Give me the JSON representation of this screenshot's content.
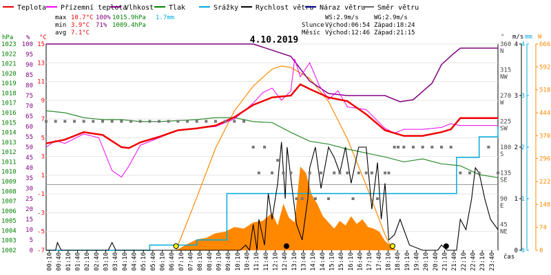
{
  "chart_data": {
    "type": "line",
    "title": "4.10.2019",
    "x_axis": {
      "label": "čas",
      "ticks": [
        "00:10",
        "00:40",
        "01:10",
        "01:40",
        "02:10",
        "02:40",
        "03:10",
        "03:40",
        "04:10",
        "04:40",
        "05:10",
        "05:40",
        "06:10",
        "06:40",
        "07:10",
        "07:40",
        "08:10",
        "08:40",
        "09:10",
        "09:40",
        "10:10",
        "10:40",
        "11:10",
        "11:40",
        "12:10",
        "12:40",
        "13:10",
        "13:40",
        "14:10",
        "14:40",
        "15:10",
        "15:40",
        "16:10",
        "16:40",
        "17:10",
        "17:40",
        "18:10",
        "18:40",
        "19:10",
        "19:40",
        "20:10",
        "20:40",
        "21:10",
        "21:40",
        "22:10",
        "22:40",
        "23:10",
        "23:40"
      ]
    },
    "axes": {
      "hpa": {
        "label": "hPa",
        "color": "#008000",
        "min": 1002,
        "max": 1023,
        "ticks": [
          "1002",
          "1003",
          "1004",
          "1005",
          "1006",
          "1007",
          "1008",
          "1009",
          "1010",
          "1011",
          "1012",
          "1013",
          "1014",
          "1015",
          "1016",
          "1017",
          "1018",
          "1019",
          "1020",
          "1021",
          "1022",
          "1023"
        ]
      },
      "percent": {
        "label": "%",
        "color": "#800080",
        "min": 0,
        "max": 100,
        "ticks": [
          "0",
          "5",
          "10",
          "15",
          "20",
          "25",
          "30",
          "35",
          "40",
          "45",
          "50",
          "55",
          "60",
          "65",
          "70",
          "75",
          "80",
          "85",
          "90",
          "95",
          "100"
        ]
      },
      "temp": {
        "label": "°C",
        "color": "#ff0000",
        "min": -7,
        "max": 15,
        "ticks": [
          "-7",
          "-5",
          "-3",
          "-1",
          "1",
          "3",
          "5",
          "7",
          "9",
          "11",
          "13",
          "15"
        ]
      },
      "direction": {
        "label": "°",
        "color": "#555555",
        "min": 0,
        "max": 360,
        "ticks": [
          {
            "v": 360,
            "l": "360",
            "d": "N"
          },
          {
            "v": 315,
            "l": "315",
            "d": "NW"
          },
          {
            "v": 270,
            "l": "270",
            "d": "W"
          },
          {
            "v": 225,
            "l": "225",
            "d": "SW"
          },
          {
            "v": 180,
            "l": "180",
            "d": "S"
          },
          {
            "v": 135,
            "l": "135",
            "d": "SE"
          },
          {
            "v": 90,
            "l": "90",
            "d": "E"
          },
          {
            "v": 45,
            "l": "45",
            "d": "NE"
          }
        ]
      },
      "wind": {
        "label": "m/s",
        "color": "#000000",
        "min": 0,
        "max": 4,
        "ticks": [
          "0",
          "1",
          "2",
          "3",
          "4"
        ]
      },
      "rain": {
        "label": "mm",
        "color": "#00aadd",
        "min": 0,
        "max": 4,
        "ticks": [
          "0",
          "1",
          "2",
          "3",
          "4"
        ]
      },
      "solar": {
        "label": "W",
        "color": "#ff8800",
        "min": 0,
        "max": 666,
        "ticks": [
          "0",
          "74",
          "148",
          "222",
          "296",
          "370",
          "444",
          "518",
          "592",
          "666"
        ]
      }
    },
    "legend": [
      {
        "name": "Teplota",
        "color": "#ee0000"
      },
      {
        "name": "Přízemní teplota",
        "color": "#ff00ff"
      },
      {
        "name": "Vlhkost",
        "color": "#800080"
      },
      {
        "name": "Tlak",
        "color": "#008000"
      },
      {
        "name": "Srážky",
        "color": "#00aadd"
      },
      {
        "name": "Rychlost větru",
        "color": "#000000"
      },
      {
        "name": "Náraz větru",
        "color": "#00008b"
      },
      {
        "name": "Směr větru",
        "color": "#666666"
      }
    ],
    "stats": {
      "rows": [
        {
          "label": "max",
          "temp": "10.7°C",
          "hum": "100%",
          "press": "1015.9hPa",
          "rain": "1.7mm"
        },
        {
          "label": "min",
          "temp": "3.9°C",
          "hum": "71%",
          "press": "1009.4hPa",
          "rain": ""
        },
        {
          "label": "avg",
          "temp": "7.1°C",
          "hum": "",
          "press": "",
          "rain": ""
        }
      ],
      "ws": "WS:2.9m/s",
      "wg": "WG:2.9m/s",
      "sun_label": "Slunce",
      "sun_rise": "Východ:06:54",
      "sun_set": "Západ:18:24",
      "moon_label": "Měsíc",
      "moon_rise": "Východ:12:46",
      "moon_set": "Západ:21:15"
    },
    "series": {
      "temperature": {
        "unit": "°C",
        "x": [
          0,
          1,
          2,
          3,
          4,
          4.4,
          5,
          6,
          7,
          8,
          9,
          10,
          11,
          12,
          13,
          13.5,
          14,
          15,
          16,
          17,
          18,
          19,
          20,
          21,
          21.5,
          22,
          23,
          24
        ],
        "y": [
          4.4,
          4.8,
          5.6,
          5.3,
          4.0,
          3.9,
          4.5,
          5.1,
          5.8,
          6.0,
          6.3,
          7.2,
          8.5,
          9.3,
          9.5,
          10.7,
          10.2,
          9.3,
          8.9,
          7.5,
          5.8,
          5.2,
          5.2,
          5.6,
          5.9,
          7.1,
          7.1,
          7.1
        ]
      },
      "ground_temperature": {
        "unit": "°C",
        "x": [
          0,
          0.5,
          1,
          2,
          2.8,
          3.5,
          4,
          4.4,
          5,
          6,
          7,
          8,
          9,
          10,
          11,
          11.5,
          12,
          12.5,
          13,
          13.2,
          13.5,
          14,
          14.5,
          15,
          15.5,
          16,
          17,
          18,
          18.5,
          19,
          20,
          21,
          21.5,
          22,
          23,
          24
        ],
        "y": [
          4.0,
          4.7,
          4.4,
          5.4,
          5.0,
          1.5,
          0.8,
          2.0,
          4.2,
          5.0,
          5.8,
          6.0,
          6.2,
          7.0,
          8.7,
          9.8,
          10.3,
          9.0,
          10.0,
          13.4,
          11.5,
          13.0,
          10.6,
          9.1,
          10.0,
          8.3,
          8.0,
          6.0,
          5.5,
          5.9,
          5.9,
          6.1,
          6.5,
          6.3,
          6.3,
          6.3
        ]
      },
      "humidity": {
        "unit": "%",
        "x": [
          0,
          3,
          6,
          9,
          11,
          13,
          14,
          15,
          16,
          17,
          18,
          18.8,
          19.5,
          20.5,
          21,
          21.6,
          22,
          23,
          24
        ],
        "y": [
          100,
          100,
          100,
          100,
          100,
          94,
          82,
          76,
          75,
          75,
          75,
          72,
          73,
          81,
          90,
          95,
          98,
          98,
          98
        ]
      },
      "pressure": {
        "unit": "hPa",
        "x": [
          0,
          1,
          2,
          3,
          4,
          5,
          6,
          7,
          8,
          9,
          10,
          11,
          12,
          13,
          14,
          15,
          16,
          17,
          18,
          19,
          20,
          21,
          22,
          23,
          24
        ],
        "y": [
          1016.2,
          1016.0,
          1015.5,
          1015.3,
          1015.3,
          1015.1,
          1015.1,
          1015.2,
          1015.3,
          1015.5,
          1015.5,
          1015.1,
          1015.0,
          1014.0,
          1013.1,
          1012.8,
          1012.3,
          1011.9,
          1011.5,
          1011.0,
          1011.3,
          1010.8,
          1010.6,
          1009.7,
          1009.4
        ]
      },
      "rain": {
        "unit": "mm",
        "x": [
          0,
          5.4,
          5.5,
          7.7,
          8,
          9.3,
          9.6,
          18,
          21.2,
          21.8,
          22.4,
          23,
          24
        ],
        "y": [
          0,
          0,
          0.1,
          0.1,
          0.2,
          0.2,
          1.1,
          1.1,
          1.1,
          1.8,
          1.8,
          2.2,
          2.4
        ]
      },
      "wind_speed": {
        "unit": "m/s",
        "x": [
          0,
          0.5,
          0.6,
          0.8,
          1,
          2,
          3,
          3.3,
          3.5,
          3.7,
          4,
          5,
          6,
          7,
          8,
          9,
          9.6,
          10,
          10.3,
          10.6,
          10.8,
          11,
          11.2,
          11.3,
          11.6,
          11.8,
          12,
          12.3,
          12.5,
          12.7,
          12.8,
          13,
          13.3,
          13.6,
          13.9,
          14,
          14.3,
          14.6,
          15,
          15.3,
          15.6,
          15.9,
          16.2,
          16.6,
          17,
          17.3,
          17.6,
          17.8,
          18,
          18.2,
          18.5,
          18.8,
          19,
          19.3,
          20,
          20.8,
          21,
          21.3,
          21.6,
          21.8,
          22,
          22.3,
          22.6,
          22.8,
          23,
          23.3,
          23.6,
          24
        ],
        "y": [
          0,
          0,
          0.15,
          0,
          0,
          0,
          0,
          0,
          0.15,
          0,
          0,
          0,
          0,
          0,
          0,
          0,
          0,
          0,
          0,
          0.1,
          0,
          0.5,
          0,
          0.6,
          0.1,
          1.1,
          0.6,
          1.3,
          2.1,
          1.0,
          2.0,
          1.4,
          0.5,
          0.2,
          1.0,
          1.6,
          2.0,
          1.2,
          2.0,
          1.8,
          1.5,
          2.0,
          1.3,
          2.0,
          2.0,
          0.8,
          1.7,
          0.6,
          1.3,
          0.2,
          0.3,
          0.6,
          0.4,
          0.1,
          0,
          0,
          0.1,
          0,
          0,
          0,
          0.6,
          0.4,
          1.0,
          1.6,
          1.5,
          1.0,
          0.6,
          0.4
        ]
      },
      "wind_direction": {
        "unit": "°",
        "x": [
          0,
          0.5,
          1,
          1.5,
          2,
          2.5,
          3,
          3.5,
          4,
          4.5,
          5,
          5.5,
          6,
          6.5,
          7,
          7.5,
          8,
          8.5,
          9,
          9.5,
          10,
          10.5,
          11,
          11.3,
          11.6,
          12,
          12.3,
          12.6,
          13,
          13.3,
          13.6,
          14,
          14.3,
          14.6,
          15,
          15.3,
          15.6,
          16,
          16.3,
          16.6,
          17,
          17.3,
          17.6,
          18,
          18.2,
          18.5,
          18.7,
          19,
          19.5,
          20,
          20.5,
          21,
          21.5,
          22,
          22.5,
          23,
          23.5,
          24
        ],
        "y": [
          225,
          225,
          225,
          225,
          225,
          225,
          225,
          225,
          225,
          225,
          225,
          225,
          225,
          225,
          225,
          225,
          225,
          225,
          225,
          225,
          225,
          225,
          180,
          135,
          180,
          135,
          157,
          135,
          135,
          90,
          90,
          135,
          90,
          135,
          90,
          135,
          135,
          135,
          90,
          135,
          135,
          135,
          90,
          135,
          135,
          180,
          180,
          180,
          180,
          180,
          180,
          180,
          180,
          135,
          135,
          135,
          180,
          135
        ]
      },
      "solar": {
        "unit": "W",
        "x": [
          0,
          6.9,
          7.5,
          8,
          8.5,
          9,
          9.5,
          10,
          10.5,
          11,
          11.5,
          12,
          12.3,
          12.6,
          12.9,
          13.2,
          13.5,
          13.8,
          14.1,
          14.4,
          14.7,
          15,
          15.3,
          15.6,
          15.9,
          16.2,
          16.5,
          16.8,
          17.1,
          17.4,
          17.7,
          18,
          18.3,
          18.6,
          24
        ],
        "y": [
          0,
          0,
          20,
          35,
          40,
          55,
          60,
          75,
          70,
          90,
          95,
          120,
          80,
          150,
          105,
          90,
          270,
          250,
          180,
          150,
          110,
          90,
          70,
          95,
          80,
          110,
          85,
          100,
          75,
          70,
          60,
          30,
          15,
          0,
          0
        ]
      },
      "solar_theoretical": {
        "unit": "W",
        "x": [
          6.9,
          8,
          9,
          10,
          11,
          12,
          12.5,
          13,
          14,
          15,
          16,
          17,
          18,
          18.4
        ],
        "y": [
          0,
          170,
          330,
          450,
          530,
          585,
          595,
          590,
          555,
          480,
          360,
          210,
          50,
          0
        ]
      }
    },
    "markers": {
      "sun": [
        {
          "time": "06:54"
        },
        {
          "time": "18:24"
        }
      ],
      "moon": [
        {
          "time": "12:46"
        },
        {
          "time": "21:15"
        }
      ]
    }
  }
}
